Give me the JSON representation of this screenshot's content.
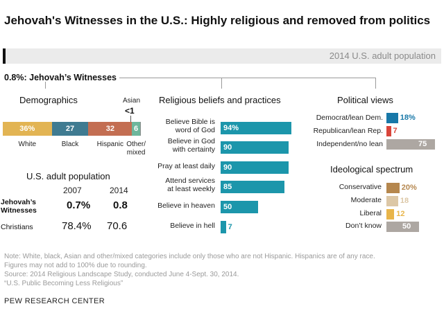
{
  "title": "Jehovah's Witnesses in the U.S.: Highly religious and removed from politics",
  "population_label": "2014 U.S. adult population",
  "jw_label": "0.8%: Jehovah’s Witnesses",
  "demographics": {
    "heading": "Demographics",
    "asian_label": "Asian",
    "asian_value": "<1",
    "segments": [
      {
        "label": "White",
        "value": 36,
        "display": "36%",
        "color": "#e2b453"
      },
      {
        "label": "Black",
        "value": 27,
        "display": "27",
        "color": "#3f7b91"
      },
      {
        "label": "Hispanic",
        "value": 32,
        "display": "32",
        "color": "#c36e52"
      },
      {
        "label": "Other/mixed",
        "value": 6,
        "display": "6",
        "color": "#6db79c"
      }
    ]
  },
  "population_table": {
    "heading": "U.S. adult population",
    "years": [
      "2007",
      "2014"
    ],
    "rows": [
      {
        "label": "Jehovah’s Witnesses",
        "v2007": "0.7%",
        "v2014": "0.8"
      },
      {
        "label": "Christians",
        "v2007": "78.4%",
        "v2014": "70.6"
      }
    ]
  },
  "beliefs": {
    "heading": "Religious beliefs and practices",
    "color": "#1c96ab"
  },
  "political": {
    "heading": "Political views"
  },
  "ideology": {
    "heading": "Ideological spectrum"
  },
  "chart_data": [
    {
      "type": "bar",
      "title": "Religious beliefs and practices",
      "categories": [
        "Believe Bible is word of God",
        "Believe in God with certainty",
        "Pray at least daily",
        "Attend services at least weekly",
        "Believe in heaven",
        "Believe in hell"
      ],
      "values": [
        94,
        90,
        90,
        85,
        50,
        7
      ],
      "display": [
        "94%",
        "90",
        "90",
        "85",
        "50",
        "7"
      ],
      "ylim": [
        0,
        100
      ]
    },
    {
      "type": "bar",
      "title": "Political views",
      "categories": [
        "Democrat/lean Dem.",
        "Republican/lean Rep.",
        "Independent/no lean"
      ],
      "values": [
        18,
        7,
        75
      ],
      "display": [
        "18%",
        "7",
        "75"
      ],
      "colors": [
        "#1878a8",
        "#d9453b",
        "#ada7a2"
      ],
      "ylim": [
        0,
        100
      ]
    },
    {
      "type": "bar",
      "title": "Ideological spectrum",
      "categories": [
        "Conservative",
        "Moderate",
        "Liberal",
        "Don’t know"
      ],
      "values": [
        20,
        18,
        12,
        50
      ],
      "display": [
        "20%",
        "18",
        "12",
        "50"
      ],
      "colors": [
        "#b5874e",
        "#dcc7a6",
        "#e8b54a",
        "#ada7a2"
      ],
      "ylim": [
        0,
        100
      ]
    }
  ],
  "notes": [
    "Note: White, black, Asian and other/mixed categories include only those who are not Hispanic. Hispanics are of any race.",
    "Figures may not add to 100% due to rounding.",
    "Source: 2014 Religious Landscape Study, conducted June 4-Sept. 30, 2014.",
    "“U.S. Public Becoming Less Religious”"
  ],
  "brand": "PEW RESEARCH CENTER"
}
